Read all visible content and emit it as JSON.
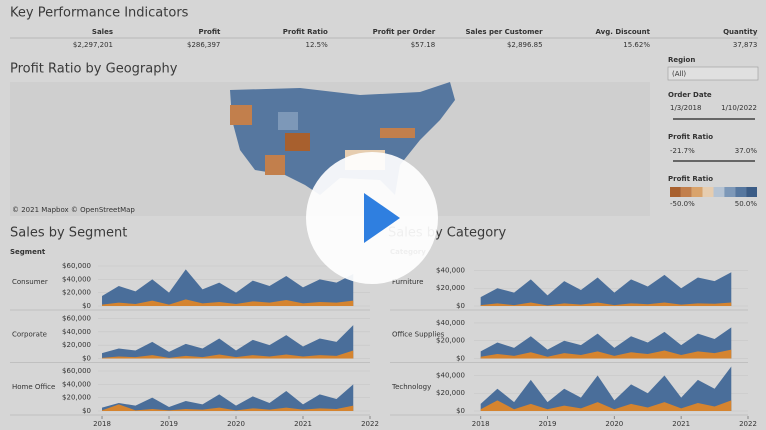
{
  "header": {
    "title": "Key Performance Indicators"
  },
  "kpis": [
    {
      "label": "Sales",
      "value": "$2,297,201"
    },
    {
      "label": "Profit",
      "value": "$286,397"
    },
    {
      "label": "Profit Ratio",
      "value": "12.5%"
    },
    {
      "label": "Profit per Order",
      "value": "$57.18"
    },
    {
      "label": "Sales per Customer",
      "value": "$2,896.85"
    },
    {
      "label": "Avg. Discount",
      "value": "15.62%"
    },
    {
      "label": "Quantity",
      "value": "37,873"
    }
  ],
  "map": {
    "title": "Profit Ratio by Geography",
    "attribution": "© 2021 Mapbox © OpenStreetMap"
  },
  "filters": {
    "region": {
      "label": "Region",
      "value": "(All)"
    },
    "order_date": {
      "label": "Order Date",
      "from": "1/3/2018",
      "to": "1/10/2022"
    },
    "profit_ratio": {
      "label": "Profit Ratio",
      "from": "-21.7%",
      "to": "37.0%"
    },
    "legend": {
      "label": "Profit Ratio",
      "min": "-50.0%",
      "max": "50.0%",
      "colors": [
        "#a8602e",
        "#c27f4c",
        "#d9a36b",
        "#e6cdb0",
        "#b5c3d3",
        "#7d98b8",
        "#56779f",
        "#3b5c86"
      ]
    }
  },
  "chart_data": [
    {
      "type": "area",
      "title": "Sales by Segment",
      "row_header": "Segment",
      "x": [
        2018,
        2018.25,
        2018.5,
        2018.75,
        2019,
        2019.25,
        2019.5,
        2019.75,
        2020,
        2020.25,
        2020.5,
        2020.75,
        2021,
        2021.25,
        2021.5,
        2021.75
      ],
      "xlim": [
        2017.94,
        2022
      ],
      "xticks": [
        2018,
        2019,
        2020,
        2021,
        2022
      ],
      "ylim": [
        0,
        72000
      ],
      "yticks": [
        {
          "value": 0,
          "label": "$0"
        },
        {
          "value": 20000,
          "label": "$20,000"
        },
        {
          "value": 40000,
          "label": "$40,000"
        },
        {
          "value": 60000,
          "label": "$60,000"
        }
      ],
      "panels": [
        {
          "name": "Consumer",
          "series": [
            {
              "color": "#4a6e9a",
              "values": [
                15000,
                30000,
                22000,
                40000,
                20000,
                55000,
                25000,
                35000,
                20000,
                38000,
                30000,
                45000,
                28000,
                40000,
                35000,
                48000
              ]
            },
            {
              "color": "#d5842f",
              "values": [
                2000,
                5000,
                3000,
                8000,
                2000,
                10000,
                4000,
                6000,
                3000,
                7000,
                5000,
                9000,
                4000,
                6000,
                5000,
                8000
              ]
            }
          ]
        },
        {
          "name": "Corporate",
          "series": [
            {
              "color": "#4a6e9a",
              "values": [
                8000,
                15000,
                12000,
                25000,
                10000,
                22000,
                15000,
                30000,
                12000,
                28000,
                20000,
                35000,
                18000,
                30000,
                25000,
                50000
              ]
            },
            {
              "color": "#d5842f",
              "values": [
                1000,
                3000,
                2000,
                5000,
                1000,
                4000,
                2000,
                6000,
                2000,
                5000,
                3000,
                6000,
                3000,
                5000,
                4000,
                12000
              ]
            }
          ]
        },
        {
          "name": "Home Office",
          "series": [
            {
              "color": "#4a6e9a",
              "values": [
                5000,
                12000,
                8000,
                20000,
                6000,
                15000,
                10000,
                25000,
                8000,
                22000,
                12000,
                30000,
                10000,
                25000,
                18000,
                40000
              ]
            },
            {
              "color": "#d5842f",
              "values": [
                1000,
                10000,
                1000,
                3000,
                1000,
                3000,
                2000,
                5000,
                1000,
                4000,
                2000,
                5000,
                2000,
                4000,
                3000,
                8000
              ]
            }
          ]
        }
      ]
    },
    {
      "type": "area",
      "title": "Sales by Category",
      "row_header": "Category",
      "x": [
        2018,
        2018.25,
        2018.5,
        2018.75,
        2019,
        2019.25,
        2019.5,
        2019.75,
        2020,
        2020.25,
        2020.5,
        2020.75,
        2021,
        2021.25,
        2021.5,
        2021.75
      ],
      "xlim": [
        2017.9,
        2022
      ],
      "xticks": [
        2018,
        2019,
        2020,
        2021,
        2022
      ],
      "ylim": [
        0,
        54000
      ],
      "yticks": [
        {
          "value": 0,
          "label": "$0"
        },
        {
          "value": 20000,
          "label": "$20,000"
        },
        {
          "value": 40000,
          "label": "$40,000"
        }
      ],
      "panels": [
        {
          "name": "Furniture",
          "series": [
            {
              "color": "#4a6e9a",
              "values": [
                10000,
                20000,
                15000,
                30000,
                12000,
                28000,
                18000,
                32000,
                15000,
                30000,
                22000,
                35000,
                20000,
                32000,
                28000,
                38000
              ]
            },
            {
              "color": "#d5842f",
              "values": [
                1000,
                3000,
                1000,
                4000,
                500,
                3000,
                1500,
                4000,
                1000,
                3000,
                2000,
                4000,
                1500,
                3000,
                2500,
                4000
              ]
            }
          ]
        },
        {
          "name": "Office Supplies",
          "series": [
            {
              "color": "#4a6e9a",
              "values": [
                8000,
                18000,
                12000,
                25000,
                10000,
                20000,
                15000,
                28000,
                12000,
                25000,
                18000,
                30000,
                15000,
                28000,
                22000,
                35000
              ]
            },
            {
              "color": "#d5842f",
              "values": [
                2000,
                5000,
                3000,
                7000,
                2000,
                6000,
                4000,
                8000,
                3000,
                7000,
                5000,
                9000,
                4000,
                8000,
                6000,
                10000
              ]
            }
          ]
        },
        {
          "name": "Technology",
          "series": [
            {
              "color": "#4a6e9a",
              "values": [
                8000,
                25000,
                10000,
                35000,
                10000,
                25000,
                15000,
                40000,
                12000,
                30000,
                20000,
                40000,
                15000,
                35000,
                25000,
                50000
              ]
            },
            {
              "color": "#d5842f",
              "values": [
                2000,
                12000,
                2000,
                8000,
                2000,
                6000,
                3000,
                10000,
                2000,
                8000,
                4000,
                10000,
                3000,
                9000,
                5000,
                12000
              ]
            }
          ]
        }
      ]
    }
  ]
}
